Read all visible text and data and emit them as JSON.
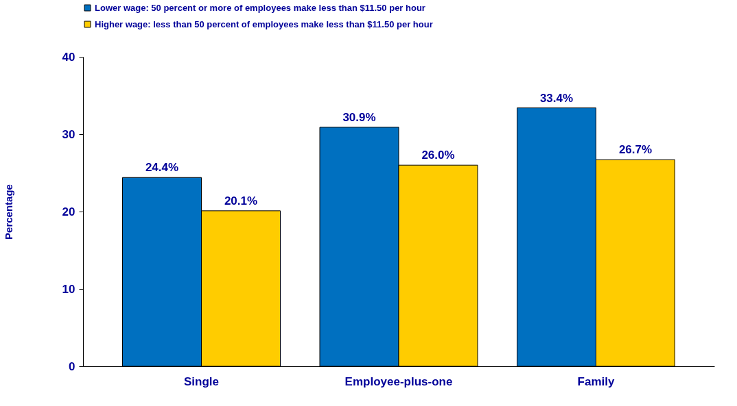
{
  "chart_data": {
    "type": "bar",
    "ylabel": "Percentage",
    "categories": [
      "Single",
      "Employee-plus-one",
      "Family"
    ],
    "series": [
      {
        "name": "Lower wage: 50 percent or more of employees make less than $11.50 per hour",
        "color": "#0070c0",
        "values": [
          24.4,
          30.9,
          33.4
        ],
        "value_labels": [
          "24.4%",
          "30.9%",
          "33.4%"
        ]
      },
      {
        "name": "Higher wage: less than 50 percent of employees make less than $11.50 per hour",
        "color": "#ffcc00",
        "values": [
          20.1,
          26.0,
          26.7
        ],
        "value_labels": [
          "20.1%",
          "26.0%",
          "26.7%"
        ]
      }
    ],
    "ylim": [
      0,
      40
    ],
    "yticks": [
      0,
      10,
      20,
      30,
      40
    ],
    "grid": false,
    "legend": "top"
  }
}
